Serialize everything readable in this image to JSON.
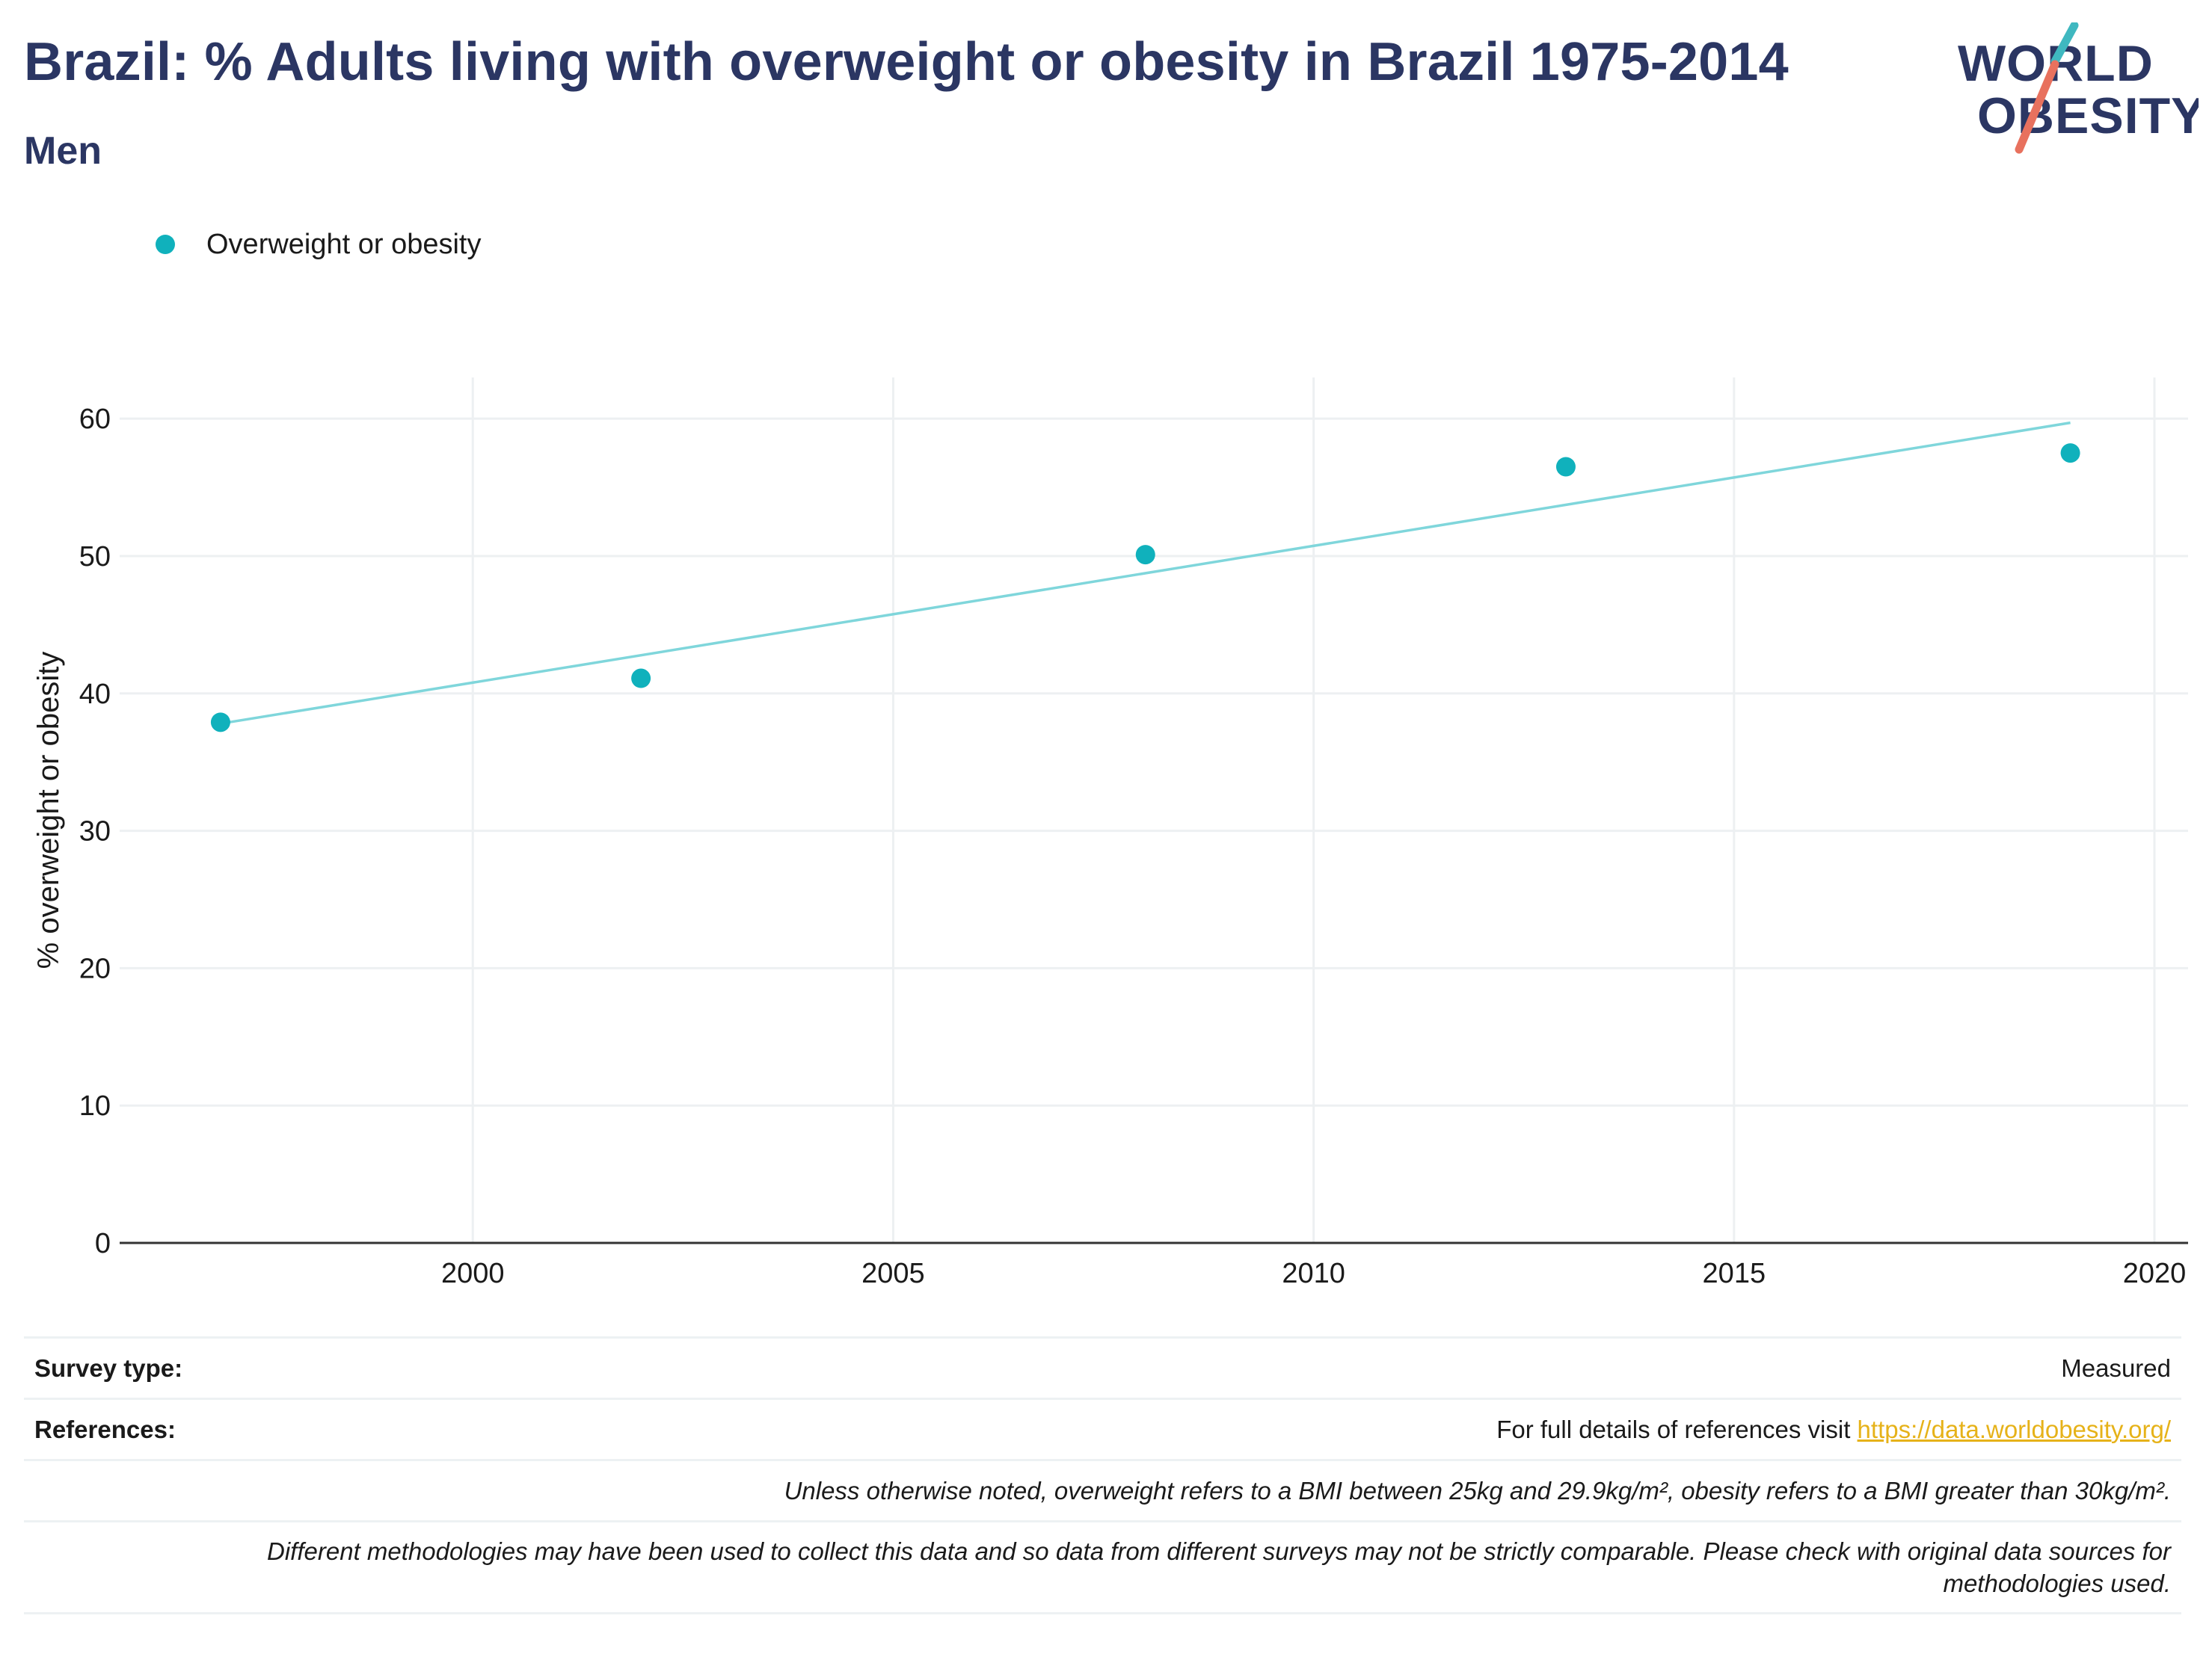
{
  "header": {
    "title": "Brazil: % Adults living with overweight or obesity in Brazil 1975-2014",
    "subtitle": "Men"
  },
  "logo": {
    "line1": "WORLD",
    "line2": "OBESITY"
  },
  "colors": {
    "title": "#2b3663",
    "series": "#10b1bc",
    "trend": "#7fd6db",
    "grid": "#edf0f2",
    "link": "#e6b219",
    "logo_teal": "#3fb8c0",
    "logo_coral": "#e8715e"
  },
  "chart_data": {
    "type": "scatter",
    "title": "Brazil: % Adults living with overweight or obesity in Brazil 1975-2014",
    "subtitle": "Men",
    "xlabel": "",
    "ylabel": "% overweight or obesity",
    "xlim": [
      1995.8,
      2020.4
    ],
    "ylim": [
      0,
      63
    ],
    "xticks": [
      2000,
      2005,
      2010,
      2015,
      2020
    ],
    "yticks": [
      0,
      10,
      20,
      30,
      40,
      50,
      60
    ],
    "grid": true,
    "legend_position": "top-left",
    "series": [
      {
        "name": "Overweight or obesity",
        "x": [
          1997,
          2002,
          2008,
          2013,
          2019
        ],
        "y": [
          37.9,
          41.1,
          50.1,
          56.5,
          57.5
        ]
      }
    ],
    "trendline": {
      "x": [
        1997,
        2019
      ],
      "y": [
        37.8,
        59.7
      ]
    }
  },
  "footer": {
    "survey_type_label": "Survey type:",
    "survey_type_value": "Measured",
    "references_label": "References:",
    "references_text": "For full details of references visit ",
    "references_link": "https://data.worldobesity.org/",
    "note_bmi": "Unless otherwise noted, overweight refers to a BMI between 25kg and 29.9kg/m², obesity refers to a BMI greater than 30kg/m².",
    "note_methodology_1": "Different methodologies may have been used to collect this data and so data from different surveys may not be strictly comparable. Please check with original data sources for",
    "note_methodology_2": "methodologies used."
  }
}
